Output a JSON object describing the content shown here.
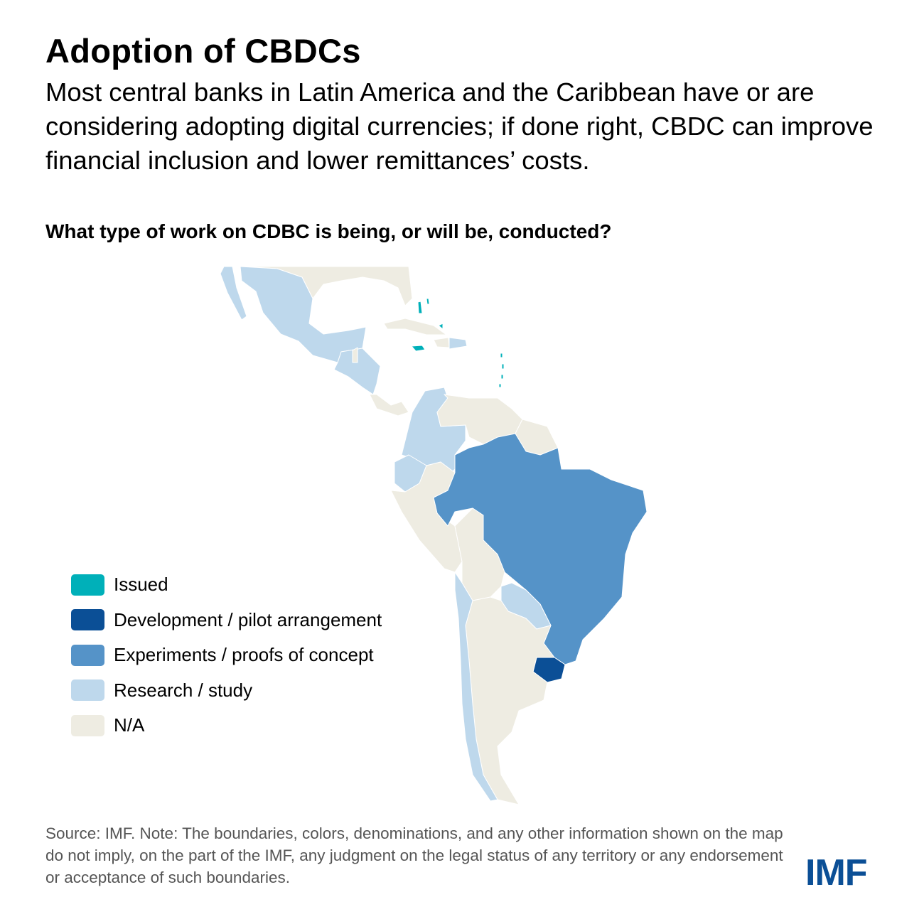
{
  "header": {
    "title": "Adoption of CBDCs",
    "subtitle": "Most central banks in Latin America and the Caribbean have or are considering adopting digital currencies; if done right, CBDC can improve financial inclusion and lower remittances’ costs."
  },
  "map": {
    "question": "What type of work on CDBC is being, or will be, conducted?",
    "legend": [
      {
        "key": "issued",
        "label": "Issued",
        "color": "#00b0b9"
      },
      {
        "key": "development",
        "label": "Development / pilot arrangement",
        "color": "#0b4f96"
      },
      {
        "key": "experiments",
        "label": "Experiments / proofs of concept",
        "color": "#5593c8"
      },
      {
        "key": "research",
        "label": "Research / study",
        "color": "#bed8ec"
      },
      {
        "key": "na",
        "label": "N/A",
        "color": "#eeece2"
      }
    ]
  },
  "footer": {
    "source": "Source: IMF. Note: The boundaries, colors, denominations, and any other information shown on the map do not imply, on the part of the IMF, any judgment on the legal status of any territory or any endorsement or acceptance of such boundaries.",
    "logo": "IMF"
  }
}
